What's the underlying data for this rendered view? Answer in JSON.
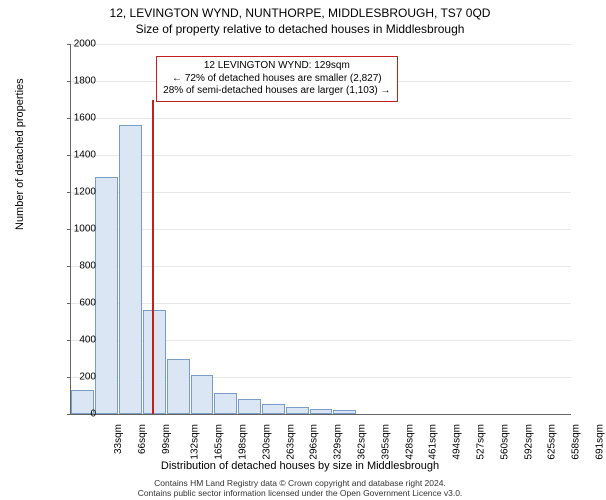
{
  "title_line1": "12, LEVINGTON WYND, NUNTHORPE, MIDDLESBROUGH, TS7 0QD",
  "title_line2": "Size of property relative to detached houses in Middlesbrough",
  "chart": {
    "type": "histogram",
    "ylabel": "Number of detached properties",
    "xlabel": "Distribution of detached houses by size in Middlesbrough",
    "ylim": [
      0,
      2000
    ],
    "yticks": [
      0,
      200,
      400,
      600,
      800,
      1000,
      1200,
      1400,
      1600,
      1800,
      2000
    ],
    "xticks": [
      "33sqm",
      "66sqm",
      "99sqm",
      "132sqm",
      "165sqm",
      "198sqm",
      "230sqm",
      "263sqm",
      "296sqm",
      "329sqm",
      "362sqm",
      "395sqm",
      "428sqm",
      "461sqm",
      "494sqm",
      "527sqm",
      "560sqm",
      "592sqm",
      "625sqm",
      "658sqm",
      "691sqm"
    ],
    "values": [
      130,
      1280,
      1560,
      560,
      300,
      210,
      115,
      80,
      55,
      40,
      28,
      20,
      0,
      0,
      0,
      0,
      0,
      0,
      0,
      0,
      0
    ],
    "bar_fill": "#dbe6f4",
    "bar_stroke": "#7a9cc6",
    "grid_color": "#e8e8e8",
    "axis_color": "#666666",
    "background_color": "#ffffff",
    "marker": {
      "x_value_sqm": 129,
      "line_color": "#c02020",
      "line_height_to_y": 1700
    },
    "annotation": {
      "border_color": "#c02020",
      "lines": [
        "12 LEVINGTON WYND: 129sqm",
        "← 72% of detached houses are smaller (2,827)",
        "28% of semi-detached houses are larger (1,103) →"
      ]
    },
    "label_fontsize": 11,
    "tick_fontsize": 10,
    "title_fontsize": 12
  },
  "footer": {
    "line1": "Contains HM Land Registry data © Crown copyright and database right 2024.",
    "line2": "Contains public sector information licensed under the Open Government Licence v3.0."
  }
}
